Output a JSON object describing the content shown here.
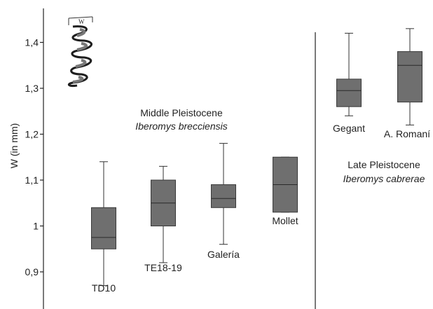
{
  "chart_data": {
    "type": "boxplot",
    "ylabel": "W (in mm)",
    "ylim": [
      0.86,
      1.48
    ],
    "yticks": [
      {
        "value": 0.9,
        "label": "0,9"
      },
      {
        "value": 1.0,
        "label": "1"
      },
      {
        "value": 1.1,
        "label": "1,1"
      },
      {
        "value": 1.2,
        "label": "1,2"
      },
      {
        "value": 1.3,
        "label": "1,3"
      },
      {
        "value": 1.4,
        "label": "1,4"
      }
    ],
    "grid": false,
    "groups": [
      {
        "title": "Middle Pleistocene",
        "species": "Iberomys brecciensis"
      },
      {
        "title": "Late Pleistocene",
        "species": "Iberomys cabrerae"
      }
    ],
    "categories": [
      "TD10",
      "TE18-19",
      "Galería",
      "Mollet",
      "Gegant",
      "A. Romaní"
    ],
    "series": [
      {
        "category": "TD10",
        "group": "Middle Pleistocene",
        "min": 0.87,
        "q1": 0.95,
        "median": 0.975,
        "q3": 1.04,
        "max": 1.14
      },
      {
        "category": "TE18-19",
        "group": "Middle Pleistocene",
        "min": 0.92,
        "q1": 1.0,
        "median": 1.05,
        "q3": 1.1,
        "max": 1.13
      },
      {
        "category": "Galería",
        "group": "Middle Pleistocene",
        "min": 0.96,
        "q1": 1.04,
        "median": 1.06,
        "q3": 1.09,
        "max": 1.18
      },
      {
        "category": "Mollet",
        "group": "Middle Pleistocene",
        "min": 1.03,
        "q1": 1.03,
        "median": 1.09,
        "q3": 1.15,
        "max": 1.15
      },
      {
        "category": "Gegant",
        "group": "Late Pleistocene",
        "min": 1.24,
        "q1": 1.26,
        "median": 1.295,
        "q3": 1.32,
        "max": 1.42
      },
      {
        "category": "A. Romaní",
        "group": "Late Pleistocene",
        "min": 1.22,
        "q1": 1.27,
        "median": 1.35,
        "q3": 1.38,
        "max": 1.43
      }
    ],
    "inset": {
      "label": "W",
      "icon": "molar-tooth-sketch-icon"
    },
    "colors": {
      "box_fill": "#6f6f6f",
      "box_stroke": "#3a3a3a",
      "axis": "#222222"
    }
  }
}
